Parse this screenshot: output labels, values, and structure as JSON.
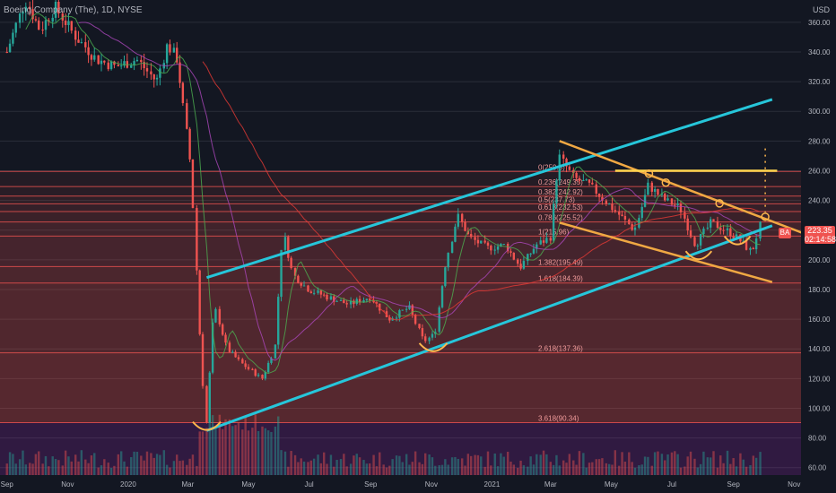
{
  "header": {
    "title": "Boeing Company (The), 1D, NYSE",
    "currency": "USD"
  },
  "price_tag": {
    "price": "223.35",
    "countdown": "02:14:58"
  },
  "badge_label": "BA",
  "colors": {
    "bg": "#131722",
    "up": "#26a69a",
    "down": "#ef5350",
    "channel": "#26c6da",
    "trend": "#f0a843",
    "fib": "#ef5350",
    "grid": "#2a2e39"
  },
  "chart_data": {
    "type": "candlestick",
    "title": "Boeing Company (The), 1D, NYSE",
    "ylim": [
      55,
      375
    ],
    "y_ticks": [
      60,
      80,
      100,
      120,
      140,
      160,
      180,
      200,
      220,
      240,
      260,
      280,
      300,
      320,
      340,
      360
    ],
    "x_ticks": [
      "Sep",
      "Nov",
      "2020",
      "Mar",
      "May",
      "Jul",
      "Sep",
      "Nov",
      "2021",
      "Mar",
      "May",
      "Jul",
      "Sep",
      "Nov"
    ],
    "fib_levels": [
      {
        "label": "0(259.5)",
        "value": 259.5
      },
      {
        "label": "0.236(249.35)",
        "value": 249.35
      },
      {
        "label": "0.382(242.92)",
        "value": 242.92
      },
      {
        "label": "0.5(237.73)",
        "value": 237.73
      },
      {
        "label": "0.618(232.53)",
        "value": 232.53
      },
      {
        "label": "0.786(225.52)",
        "value": 225.52
      },
      {
        "label": "1(215.96)",
        "value": 215.96
      },
      {
        "label": "1.382(195.49)",
        "value": 195.49
      },
      {
        "label": "1.618(184.39)",
        "value": 184.39
      },
      {
        "label": "2.618(137.36)",
        "value": 137.36
      },
      {
        "label": "3.618(90.34)",
        "value": 90.34
      }
    ],
    "price_path": [
      [
        "2019-09-01",
        340
      ],
      [
        "2019-09-20",
        375
      ],
      [
        "2019-10-05",
        355
      ],
      [
        "2019-10-20",
        370
      ],
      [
        "2019-11-10",
        350
      ],
      [
        "2019-12-01",
        335
      ],
      [
        "2019-12-20",
        330
      ],
      [
        "2020-01-10",
        335
      ],
      [
        "2020-01-30",
        320
      ],
      [
        "2020-02-10",
        345
      ],
      [
        "2020-02-20",
        335
      ],
      [
        "2020-03-05",
        260
      ],
      [
        "2020-03-15",
        130
      ],
      [
        "2020-03-20",
        90
      ],
      [
        "2020-03-28",
        170
      ],
      [
        "2020-04-10",
        140
      ],
      [
        "2020-04-25",
        130
      ],
      [
        "2020-05-15",
        120
      ],
      [
        "2020-05-28",
        140
      ],
      [
        "2020-06-05",
        220
      ],
      [
        "2020-06-15",
        190
      ],
      [
        "2020-07-01",
        180
      ],
      [
        "2020-07-20",
        175
      ],
      [
        "2020-08-10",
        170
      ],
      [
        "2020-09-01",
        175
      ],
      [
        "2020-09-20",
        160
      ],
      [
        "2020-10-10",
        168
      ],
      [
        "2020-10-25",
        145
      ],
      [
        "2020-11-05",
        150
      ],
      [
        "2020-11-15",
        195
      ],
      [
        "2020-11-28",
        230
      ],
      [
        "2020-12-10",
        215
      ],
      [
        "2020-12-28",
        208
      ],
      [
        "2021-01-15",
        210
      ],
      [
        "2021-01-30",
        195
      ],
      [
        "2021-02-15",
        210
      ],
      [
        "2021-03-01",
        215
      ],
      [
        "2021-03-10",
        270
      ],
      [
        "2021-03-25",
        255
      ],
      [
        "2021-04-10",
        250
      ],
      [
        "2021-04-25",
        240
      ],
      [
        "2021-05-10",
        230
      ],
      [
        "2021-05-25",
        220
      ],
      [
        "2021-06-08",
        250
      ],
      [
        "2021-06-25",
        240
      ],
      [
        "2021-07-10",
        235
      ],
      [
        "2021-07-25",
        210
      ],
      [
        "2021-08-10",
        225
      ],
      [
        "2021-08-25",
        220
      ],
      [
        "2021-09-05",
        215
      ],
      [
        "2021-09-20",
        205
      ],
      [
        "2021-09-28",
        223
      ]
    ],
    "channel_upper": [
      [
        "2020-03-20",
        188
      ],
      [
        "2021-10-10",
        308
      ]
    ],
    "channel_lower": [
      [
        "2020-03-20",
        85
      ],
      [
        "2021-10-10",
        223
      ]
    ],
    "downtrend_upper": [
      [
        "2021-03-10",
        280
      ],
      [
        "2021-11-10",
        218
      ]
    ],
    "downtrend_lower": [
      [
        "2021-03-10",
        225
      ],
      [
        "2021-10-10",
        185
      ]
    ],
    "resistance": [
      [
        "2021-05-05",
        260
      ],
      [
        "2021-10-15",
        260
      ]
    ],
    "marker_circles": [
      [
        "2021-06-08",
        258
      ],
      [
        "2021-06-25",
        252
      ],
      [
        "2021-08-18",
        238
      ],
      [
        "2021-10-03",
        229
      ]
    ],
    "bottom_arcs": [
      {
        "center": [
          "2020-03-20",
          86
        ],
        "width_days": 28
      },
      {
        "center": [
          "2020-11-03",
          139
        ],
        "width_days": 28
      },
      {
        "center": [
          "2021-07-28",
          201
        ],
        "width_days": 26
      },
      {
        "center": [
          "2021-09-05",
          211
        ],
        "width_days": 26
      }
    ]
  }
}
